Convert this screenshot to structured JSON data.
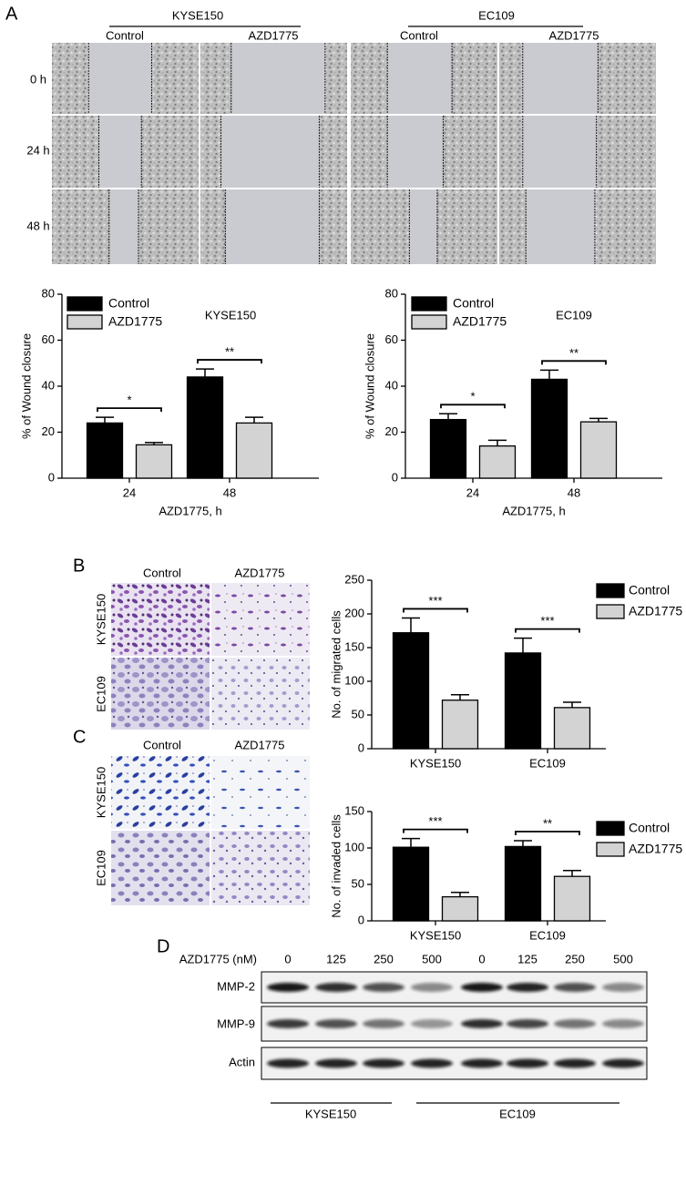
{
  "panel_A": {
    "label": "A",
    "groups": [
      "KYSE150",
      "EC109"
    ],
    "columns": [
      "Control",
      "AZD1775",
      "Control",
      "AZD1775"
    ],
    "rows": [
      "0 h",
      "24 h",
      "48 h"
    ]
  },
  "panel_B": {
    "label": "B",
    "columns": [
      "Control",
      "AZD1775"
    ],
    "rows": [
      "KYSE150",
      "EC109"
    ]
  },
  "panel_C": {
    "label": "C",
    "columns": [
      "Control",
      "AZD1775"
    ],
    "rows": [
      "KYSE150",
      "EC109"
    ]
  },
  "panel_D": {
    "label": "D",
    "treatment": "AZD1775 (nM)",
    "doses": [
      0,
      125,
      250,
      500,
      0,
      125,
      250,
      500
    ],
    "proteins": [
      "MMP-2",
      "MMP-9",
      "Actin"
    ],
    "cell_lines": [
      "KYSE150",
      "EC109"
    ]
  },
  "chart_data": [
    {
      "type": "bar",
      "annotation": "KYSE150",
      "ylabel": "% of Wound closure",
      "xlabel": "AZD1775, h",
      "categories": [
        "24",
        "48"
      ],
      "series": [
        {
          "name": "Control",
          "color": "#000000",
          "values": [
            24,
            44
          ],
          "errors": [
            2.5,
            3.5
          ]
        },
        {
          "name": "AZD1775",
          "color": "#d3d3d3",
          "values": [
            14.5,
            24
          ],
          "errors": [
            1,
            2.5
          ]
        }
      ],
      "ylim": [
        0,
        80
      ],
      "yticks": [
        0,
        20,
        40,
        60,
        80
      ],
      "legend": "upper left",
      "significance": [
        "*",
        "**"
      ]
    },
    {
      "type": "bar",
      "annotation": "EC109",
      "ylabel": "% of Wound closure",
      "xlabel": "AZD1775, h",
      "categories": [
        "24",
        "48"
      ],
      "series": [
        {
          "name": "Control",
          "color": "#000000",
          "values": [
            25.5,
            43
          ],
          "errors": [
            2.5,
            4
          ]
        },
        {
          "name": "AZD1775",
          "color": "#d3d3d3",
          "values": [
            14,
            24.5
          ],
          "errors": [
            2.5,
            1.5
          ]
        }
      ],
      "ylim": [
        0,
        80
      ],
      "yticks": [
        0,
        20,
        40,
        60,
        80
      ],
      "legend": "upper left",
      "significance": [
        "*",
        "**"
      ]
    },
    {
      "type": "bar",
      "ylabel": "No. of migrated cells",
      "categories": [
        "KYSE150",
        "EC109"
      ],
      "series": [
        {
          "name": "Control",
          "color": "#000000",
          "values": [
            172,
            142
          ],
          "errors": [
            22,
            22
          ]
        },
        {
          "name": "AZD1775",
          "color": "#d3d3d3",
          "values": [
            72,
            61
          ],
          "errors": [
            8,
            8
          ]
        }
      ],
      "ylim": [
        0,
        250
      ],
      "yticks": [
        0,
        50,
        100,
        150,
        200,
        250
      ],
      "legend": "right",
      "significance": [
        "***",
        "***"
      ]
    },
    {
      "type": "bar",
      "ylabel": "No. of invaded cells",
      "categories": [
        "KYSE150",
        "EC109"
      ],
      "series": [
        {
          "name": "Control",
          "color": "#000000",
          "values": [
            101,
            102
          ],
          "errors": [
            12,
            8
          ]
        },
        {
          "name": "AZD1775",
          "color": "#d3d3d3",
          "values": [
            33,
            61
          ],
          "errors": [
            6,
            8
          ]
        }
      ],
      "ylim": [
        0,
        150
      ],
      "yticks": [
        0,
        50,
        100,
        150
      ],
      "legend": "right",
      "significance": [
        "***",
        "**"
      ]
    }
  ]
}
